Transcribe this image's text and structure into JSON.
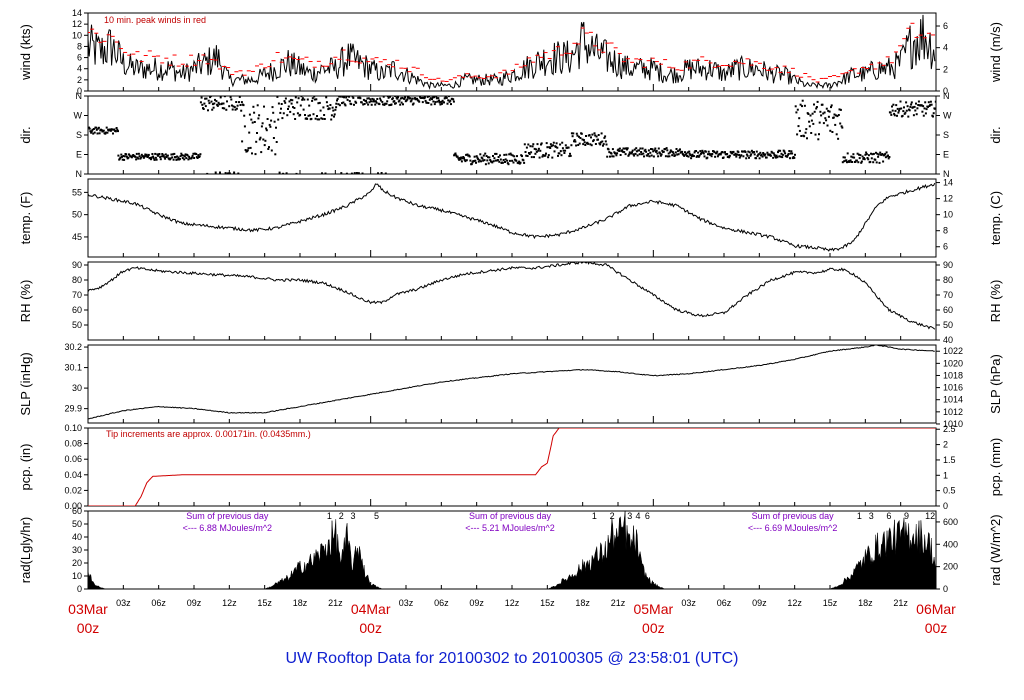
{
  "title": "UW Rooftop Data for 20100302  to  20100305 @ 23:58:01  (UTC)",
  "time_axis": {
    "hours_total": 72,
    "days": [
      {
        "hour": 0,
        "label1": "03Mar",
        "label2": "00z"
      },
      {
        "hour": 24,
        "label1": "04Mar",
        "label2": "00z"
      },
      {
        "hour": 48,
        "label1": "05Mar",
        "label2": "00z"
      },
      {
        "hour": 72,
        "label1": "06Mar",
        "label2": "00z"
      }
    ],
    "hour_ticks": [
      {
        "hour": 3,
        "label": "03z"
      },
      {
        "hour": 6,
        "label": "06z"
      },
      {
        "hour": 9,
        "label": "09z"
      },
      {
        "hour": 12,
        "label": "12z"
      },
      {
        "hour": 15,
        "label": "15z"
      },
      {
        "hour": 18,
        "label": "18z"
      },
      {
        "hour": 21,
        "label": "21z"
      },
      {
        "hour": 27,
        "label": "03z"
      },
      {
        "hour": 30,
        "label": "06z"
      },
      {
        "hour": 33,
        "label": "09z"
      },
      {
        "hour": 36,
        "label": "12z"
      },
      {
        "hour": 39,
        "label": "15z"
      },
      {
        "hour": 42,
        "label": "18z"
      },
      {
        "hour": 45,
        "label": "21z"
      },
      {
        "hour": 51,
        "label": "03z"
      },
      {
        "hour": 54,
        "label": "06z"
      },
      {
        "hour": 57,
        "label": "09z"
      },
      {
        "hour": 60,
        "label": "12z"
      },
      {
        "hour": 63,
        "label": "15z"
      },
      {
        "hour": 66,
        "label": "18z"
      },
      {
        "hour": 69,
        "label": "21z"
      }
    ]
  },
  "chart_data": [
    {
      "id": "wind",
      "type": "line",
      "ylabel_left": "wind (kts)",
      "ylabel_right": "wind (m/s)",
      "ylim": [
        0,
        14
      ],
      "left_ticks": [
        0,
        2,
        4,
        6,
        8,
        10,
        12,
        14
      ],
      "right_ticks": [
        0,
        2,
        4,
        6
      ],
      "right_scale": 0.5144,
      "annotation": "10 min. peak winds in red",
      "series": [
        {
          "name": "wind",
          "color": "#000000",
          "x": [
            0,
            1,
            2,
            3,
            4,
            5,
            6,
            7,
            8,
            9,
            10,
            11,
            12,
            13,
            14,
            15,
            16,
            17,
            18,
            19,
            20,
            21,
            22,
            23,
            24,
            25,
            26,
            27,
            28,
            29,
            30,
            31,
            32,
            33,
            34,
            35,
            36,
            37,
            38,
            39,
            40,
            41,
            42,
            43,
            44,
            45,
            46,
            47,
            48,
            49,
            50,
            51,
            52,
            53,
            54,
            55,
            56,
            57,
            58,
            59,
            60,
            61,
            62,
            63,
            64,
            65,
            66,
            67,
            68,
            69,
            70,
            71,
            72
          ],
          "y": [
            8,
            7,
            8,
            5,
            4,
            4,
            4,
            4,
            3,
            4,
            5,
            6,
            2,
            2,
            2,
            3,
            4,
            5,
            4,
            3,
            4,
            4,
            6,
            5,
            4,
            3,
            4,
            3,
            2,
            1,
            1,
            1,
            2,
            2,
            2,
            2,
            3,
            4,
            5,
            6,
            6,
            6,
            9,
            7,
            6,
            5,
            4,
            4,
            4,
            3,
            3,
            4,
            4,
            4,
            3,
            4,
            4,
            4,
            3,
            3,
            2,
            1,
            1,
            1,
            2,
            3,
            3,
            4,
            4,
            5,
            9,
            10,
            7
          ]
        }
      ],
      "peaks": {
        "x": [
          0,
          2,
          4,
          6,
          8,
          10,
          12,
          14,
          16,
          18,
          20,
          22,
          24,
          26,
          28,
          30,
          32,
          34,
          36,
          38,
          40,
          42,
          44,
          46,
          48,
          50,
          52,
          54,
          56,
          58,
          60,
          62,
          64,
          66,
          68,
          70,
          72
        ],
        "y": [
          12,
          11,
          7,
          7,
          6,
          7,
          4,
          4,
          7,
          6,
          6,
          8,
          6,
          6,
          4,
          2,
          3,
          3,
          4,
          7,
          8,
          11,
          9,
          6,
          6,
          5,
          6,
          6,
          6,
          5,
          4,
          2,
          3,
          5,
          6,
          12,
          11
        ]
      }
    },
    {
      "id": "dir",
      "type": "scatter",
      "ylabel_left": "dir.",
      "ylabel_right": "dir.",
      "ylim": [
        0,
        360
      ],
      "left_tick_labels": [
        "N",
        "E",
        "S",
        "W",
        "N"
      ],
      "right_tick_labels": [
        "N",
        "E",
        "S",
        "W",
        "N"
      ],
      "tick_values": [
        0,
        90,
        180,
        270,
        360
      ],
      "segments": [
        {
          "from": 0,
          "to": 2.5,
          "center": 200,
          "spread": 15
        },
        {
          "from": 2.5,
          "to": 9.5,
          "center": 80,
          "spread": 15
        },
        {
          "from": 9.5,
          "to": 13,
          "center": 330,
          "spread": 40
        },
        {
          "from": 13,
          "to": 16,
          "center": 210,
          "spread": 120
        },
        {
          "from": 16,
          "to": 21,
          "center": 310,
          "spread": 60
        },
        {
          "from": 21,
          "to": 26,
          "center": 340,
          "spread": 25
        },
        {
          "from": 26,
          "to": 31,
          "center": 340,
          "spread": 20
        },
        {
          "from": 31,
          "to": 37,
          "center": 70,
          "spread": 25
        },
        {
          "from": 37,
          "to": 41,
          "center": 110,
          "spread": 35
        },
        {
          "from": 41,
          "to": 44,
          "center": 160,
          "spread": 30
        },
        {
          "from": 44,
          "to": 51,
          "center": 100,
          "spread": 20
        },
        {
          "from": 51,
          "to": 60,
          "center": 90,
          "spread": 18
        },
        {
          "from": 60,
          "to": 64,
          "center": 250,
          "spread": 90
        },
        {
          "from": 64,
          "to": 68,
          "center": 75,
          "spread": 25
        },
        {
          "from": 68,
          "to": 72,
          "center": 300,
          "spread": 35
        }
      ]
    },
    {
      "id": "temp",
      "type": "line",
      "ylabel_left": "temp. (F)",
      "ylabel_right": "temp. (C)",
      "ylim": [
        40.5,
        58
      ],
      "left_ticks": [
        45,
        50,
        55
      ],
      "right_ticks": [
        6,
        8,
        10,
        12,
        14
      ],
      "series": [
        {
          "name": "temp",
          "color": "#000000",
          "x": [
            0,
            2,
            4,
            6,
            8,
            10,
            12,
            14,
            16,
            18,
            20,
            22,
            24,
            24.5,
            25,
            26,
            28,
            30,
            32,
            34,
            36,
            38,
            40,
            42,
            44,
            46,
            48,
            50,
            52,
            54,
            56,
            58,
            60,
            62,
            63,
            64,
            65,
            66,
            67,
            68,
            70,
            72
          ],
          "y": [
            54.5,
            53.5,
            52.5,
            50,
            48,
            47.5,
            47,
            46.5,
            47,
            48.5,
            50,
            52,
            55,
            57,
            55.5,
            54,
            52,
            51,
            49.5,
            48,
            46,
            45,
            45.5,
            47,
            49,
            52,
            53,
            52,
            49,
            47,
            46,
            45,
            43,
            42.5,
            42,
            42.5,
            44,
            48,
            52,
            54,
            55.5,
            57
          ]
        }
      ]
    },
    {
      "id": "rh",
      "type": "line",
      "ylabel_left": "RH (%)",
      "ylabel_right": "RH (%)",
      "ylim": [
        40,
        92
      ],
      "left_ticks": [
        50,
        60,
        70,
        80,
        90
      ],
      "right_ticks": [
        40,
        50,
        60,
        70,
        80,
        90
      ],
      "series": [
        {
          "name": "RH",
          "color": "#000000",
          "x": [
            0,
            1,
            2,
            3,
            4,
            6,
            8,
            10,
            12,
            14,
            16,
            18,
            20,
            22,
            23,
            24,
            25,
            26,
            28,
            30,
            32,
            34,
            36,
            38,
            40,
            42,
            44,
            46,
            48,
            50,
            52,
            54,
            56,
            58,
            60,
            62,
            63,
            64,
            65,
            66,
            68,
            70,
            72
          ],
          "y": [
            73,
            75,
            80,
            86,
            88,
            86,
            85,
            84,
            83,
            82,
            80,
            80,
            78,
            72,
            68,
            65,
            65,
            70,
            74,
            80,
            84,
            86,
            88,
            88,
            90,
            92,
            90,
            80,
            70,
            60,
            56,
            58,
            70,
            80,
            85,
            85,
            87,
            87,
            84,
            78,
            60,
            52,
            47
          ]
        }
      ]
    },
    {
      "id": "slp",
      "type": "line",
      "ylabel_left": "SLP (inHg)",
      "ylabel_right": "SLP (hPa)",
      "ylim": [
        29.83,
        30.21
      ],
      "left_ticks": [
        29.9,
        30.0,
        30.1,
        30.2
      ],
      "right_ticks": [
        1010,
        1012,
        1014,
        1016,
        1018,
        1020,
        1022
      ],
      "series": [
        {
          "name": "SLP",
          "color": "#000000",
          "x": [
            0,
            3,
            6,
            9,
            12,
            15,
            18,
            21,
            24,
            27,
            30,
            33,
            36,
            39,
            42,
            45,
            48,
            51,
            54,
            57,
            60,
            63,
            66,
            67,
            69,
            72
          ],
          "y": [
            29.85,
            29.89,
            29.91,
            29.9,
            29.88,
            29.88,
            29.91,
            29.94,
            29.97,
            30.0,
            30.03,
            30.05,
            30.07,
            30.08,
            30.09,
            30.08,
            30.06,
            30.07,
            30.09,
            30.11,
            30.14,
            30.18,
            30.2,
            30.21,
            30.19,
            30.18
          ]
        }
      ]
    },
    {
      "id": "pcp",
      "type": "line",
      "ylabel_left": "pcp. (in)",
      "ylabel_right": "pcp. (mm)",
      "ylim": [
        0,
        0.1
      ],
      "left_ticks": [
        0.0,
        0.02,
        0.04,
        0.06,
        0.08,
        0.1
      ],
      "left_tick_labels": [
        "0.00",
        "0.02",
        "0.04",
        "0.06",
        "0.08",
        "0.10"
      ],
      "right_ticks": [
        0,
        0.5,
        1,
        1.5,
        2,
        2.5
      ],
      "annotation": "Tip increments are approx. 0.00171in. (0.0435mm.)",
      "series": [
        {
          "name": "pcp",
          "color": "#d00000",
          "x": [
            0,
            4,
            4.5,
            5,
            5.5,
            8,
            38,
            38.5,
            39,
            39.5,
            40,
            72
          ],
          "y": [
            0,
            0,
            0.012,
            0.03,
            0.038,
            0.04,
            0.04,
            0.05,
            0.055,
            0.09,
            0.1,
            0.1
          ]
        }
      ]
    },
    {
      "id": "rad",
      "type": "area",
      "ylabel_left": "rad(Lgly/hr)",
      "ylabel_right": "rad (W/m^2)",
      "ylim": [
        0,
        60
      ],
      "left_ticks": [
        0,
        10,
        20,
        30,
        40,
        50,
        60
      ],
      "right_ticks": [
        0,
        200,
        400,
        600
      ],
      "annotation_line1": "Sum of previous day",
      "day_totals": [
        {
          "hour": 12,
          "text": "<--- 6.88 MJoules/m^2"
        },
        {
          "hour": 36,
          "text": "<--- 5.21 MJoules/m^2"
        },
        {
          "hour": 60,
          "text": "<--- 6.69 MJoules/m^2"
        }
      ],
      "series": [
        {
          "name": "rad",
          "color": "#000000",
          "x": [
            0,
            0.5,
            1,
            1.5,
            2,
            15,
            15.5,
            16,
            17,
            18,
            19,
            20,
            21,
            21.5,
            22,
            22.5,
            23,
            23.5,
            24,
            24.5,
            25,
            39,
            39.5,
            40,
            41,
            42,
            43,
            44,
            44.5,
            45,
            45.5,
            46,
            46.5,
            47,
            47.5,
            48,
            48.5,
            49,
            63,
            63.5,
            64,
            65,
            66,
            67,
            68,
            69,
            70,
            70.5,
            71,
            71.5,
            72
          ],
          "y": [
            15,
            5,
            2,
            0,
            0,
            0,
            2,
            5,
            10,
            20,
            25,
            35,
            50,
            25,
            45,
            20,
            40,
            15,
            5,
            2,
            0,
            0,
            2,
            5,
            12,
            20,
            28,
            35,
            50,
            45,
            58,
            40,
            45,
            20,
            10,
            5,
            2,
            0,
            0,
            2,
            5,
            15,
            28,
            38,
            45,
            48,
            50,
            49,
            45,
            40,
            20
          ]
        }
      ]
    }
  ],
  "hour_markers": {
    "day1": [
      "1",
      "2",
      "3",
      "5"
    ],
    "day2": [
      "1",
      "2",
      "3",
      "4",
      "6"
    ],
    "day3": [
      "1",
      "3",
      "6",
      "9",
      "12"
    ]
  }
}
